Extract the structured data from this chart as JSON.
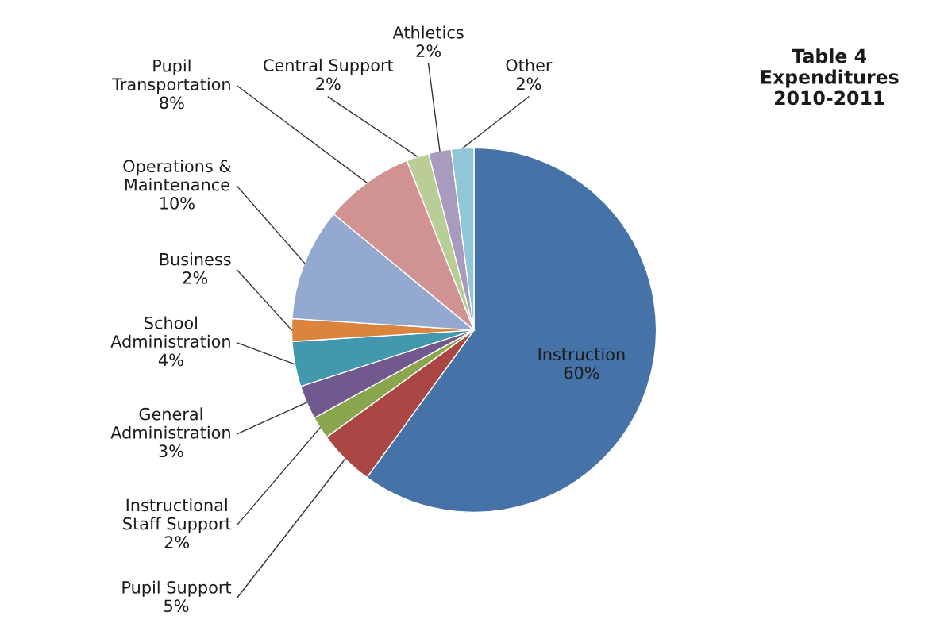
{
  "chart_data": {
    "type": "pie",
    "title": "Table 4\nExpenditures\n2010-2011",
    "categories": [
      "Instruction",
      "Pupil Support",
      "Instructional Staff Support",
      "General Administration",
      "School Administration",
      "Business",
      "Operations & Maintenance",
      "Pupil Transportation",
      "Central Support",
      "Athletics",
      "Other"
    ],
    "values": [
      60,
      5,
      2,
      3,
      4,
      2,
      10,
      8,
      2,
      2,
      2
    ],
    "value_labels": [
      "60%",
      "5%",
      "2%",
      "3%",
      "4%",
      "2%",
      "10%",
      "8%",
      "2%",
      "2%",
      "2%"
    ],
    "colors": [
      "#4572a7",
      "#aa4643",
      "#89a54e",
      "#71588f",
      "#4198af",
      "#db843d",
      "#93a9cf",
      "#d19392",
      "#b9cd96",
      "#a99bbd",
      "#92c5d8"
    ]
  }
}
